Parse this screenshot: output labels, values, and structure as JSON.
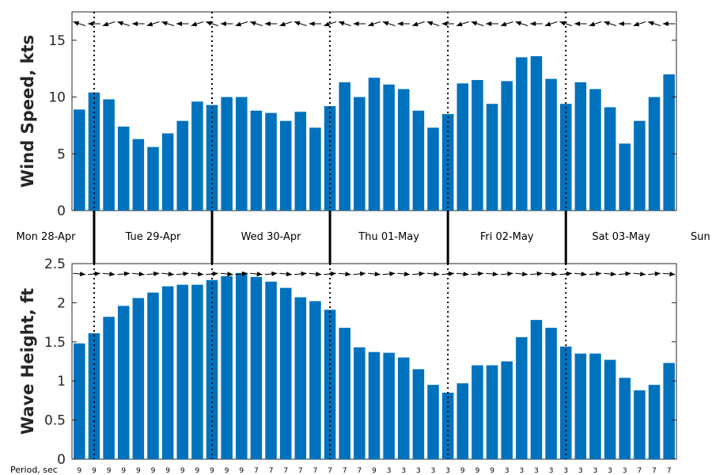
{
  "chart_data": [
    {
      "type": "bar",
      "ylabel": "Wind Speed, kts",
      "ylim": [
        0,
        17.5
      ],
      "yticks": [
        0,
        5,
        10,
        15
      ],
      "values": [
        8.9,
        10.4,
        9.8,
        7.4,
        6.3,
        5.6,
        6.8,
        7.9,
        9.6,
        9.3,
        10.0,
        10.0,
        8.8,
        8.6,
        7.9,
        8.7,
        7.3,
        9.2,
        11.3,
        10.0,
        11.7,
        11.1,
        10.7,
        8.8,
        7.3,
        8.5,
        11.2,
        11.5,
        9.4,
        11.4,
        13.5,
        13.6,
        11.6,
        9.4,
        11.3,
        10.7,
        9.1,
        5.9,
        7.9,
        10.0,
        12.0
      ],
      "bar_color": "#0072BD",
      "arrow_direction": "toward-left",
      "grid": false
    },
    {
      "type": "bar",
      "ylabel": "Wave Height, ft",
      "ylim": [
        0,
        2.5
      ],
      "yticks": [
        "0",
        "0.5",
        "1",
        "1.5",
        "2",
        "2.5"
      ],
      "values": [
        1.48,
        1.61,
        1.82,
        1.96,
        2.06,
        2.13,
        2.21,
        2.23,
        2.23,
        2.29,
        2.34,
        2.38,
        2.33,
        2.27,
        2.19,
        2.07,
        2.02,
        1.91,
        1.68,
        1.43,
        1.37,
        1.36,
        1.3,
        1.15,
        0.95,
        0.85,
        0.97,
        1.2,
        1.2,
        1.25,
        1.56,
        1.78,
        1.68,
        1.44,
        1.35,
        1.35,
        1.27,
        1.04,
        0.88,
        0.95,
        1.23
      ],
      "bar_color": "#0072BD",
      "arrow_direction": "toward-right",
      "grid": false
    }
  ],
  "days": [
    "Mon 28-Apr",
    "Tue 29-Apr",
    "Wed 30-Apr",
    "Thu 01-May",
    "Fri 02-May",
    "Sat 03-May",
    "Sun"
  ],
  "period": {
    "label": "Period, sec",
    "values": [
      "9",
      "9",
      "9",
      "9",
      "9",
      "9",
      "9",
      "9",
      "9",
      "9",
      "9",
      "9",
      "7",
      "7",
      "7",
      "7",
      "7",
      "7",
      "7",
      "7",
      "9",
      "3",
      "3",
      "3",
      "3",
      "3",
      "9",
      "9",
      "9",
      "3",
      "3",
      "3",
      "3",
      "3",
      "3",
      "3",
      "3",
      "3",
      "7",
      "7",
      "7"
    ]
  }
}
